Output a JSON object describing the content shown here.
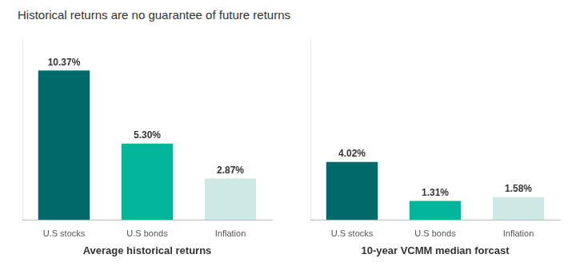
{
  "chart_data": [
    {
      "type": "bar",
      "title": "Historical returns are no guarantee of future returns",
      "x_label": "Average historical returns",
      "categories": [
        "U.S stocks",
        "U.S bonds",
        "Inflation"
      ],
      "values": [
        10.37,
        5.3,
        2.87
      ],
      "value_labels": [
        "10.37%",
        "5.30%",
        "2.87%"
      ],
      "colors": [
        "#006b6b",
        "#00b899",
        "#cdeae4"
      ],
      "ylim": [
        0,
        12.5
      ],
      "grid": false,
      "data_labels": true,
      "tick_labels": "x"
    },
    {
      "type": "bar",
      "x_label": "10-year VCMM median forcast",
      "categories": [
        "U.S stocks",
        "U.S bonds",
        "Inflation"
      ],
      "values": [
        4.02,
        1.31,
        1.58
      ],
      "value_labels": [
        "4.02%",
        "1.31%",
        "1.58%"
      ],
      "colors": [
        "#006b6b",
        "#00b899",
        "#cdeae4"
      ],
      "ylim": [
        0,
        12.5
      ],
      "grid": false,
      "data_labels": true,
      "tick_labels": "x"
    }
  ]
}
